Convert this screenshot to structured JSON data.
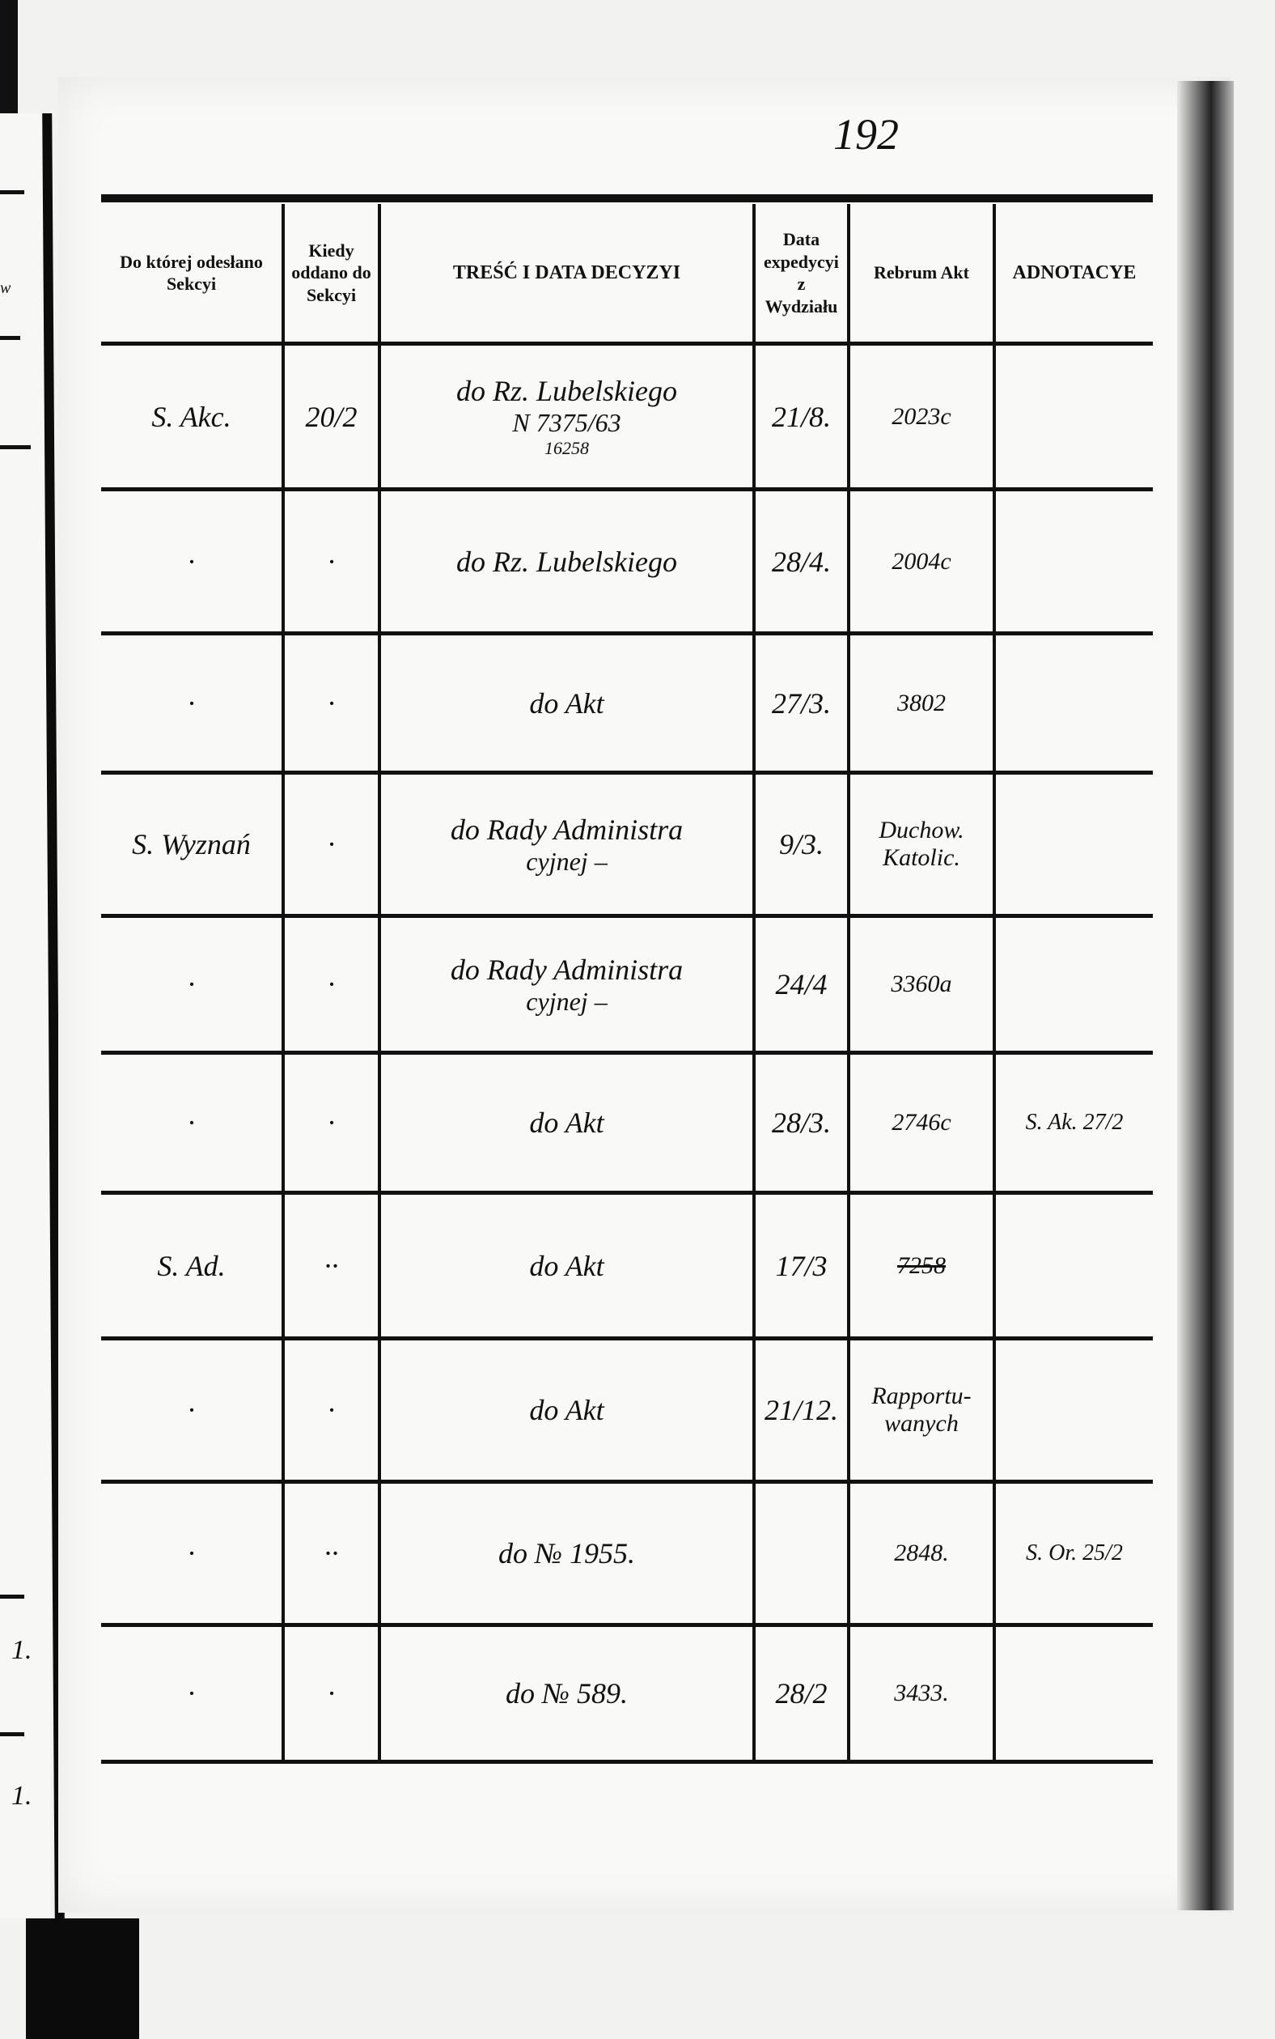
{
  "page_number": "192",
  "left_page_fragments": {
    "header_letter": "w",
    "row_marks": [
      "1.",
      "1."
    ]
  },
  "headers": {
    "col1": "Do której odesłano Sekcyi",
    "col2": "Kiedy oddano do Sekcyi",
    "col3": "TREŚĆ I DATA DECYZYI",
    "col4": "Data expedycyi z Wydziału",
    "col5": "Rebrum Akt",
    "col6": "ADNOTACYE"
  },
  "rows": [
    {
      "sekcja": "S. Akc.",
      "kiedy": "20/2",
      "tresc": "do Rz. Lubelskiego",
      "tresc2": "N 7375/63",
      "tresc3": "16258",
      "data_exp": "21/8.",
      "rebrum": "2023c",
      "adnotacye": ""
    },
    {
      "sekcja": "·",
      "kiedy": "·",
      "tresc": "do Rz. Lubelskiego",
      "tresc2": "",
      "tresc3": "",
      "data_exp": "28/4.",
      "rebrum": "2004c",
      "adnotacye": ""
    },
    {
      "sekcja": "·",
      "kiedy": "·",
      "tresc": "do Akt",
      "tresc2": "",
      "tresc3": "",
      "data_exp": "27/3.",
      "rebrum": "3802",
      "adnotacye": ""
    },
    {
      "sekcja": "S. Wyznań",
      "kiedy": "·",
      "tresc": "do Rady Administra",
      "tresc2": "cyjnej –",
      "tresc3": "",
      "data_exp": "9/3.",
      "rebrum": "Duchow. Katolic.",
      "adnotacye": ""
    },
    {
      "sekcja": "·",
      "kiedy": "·",
      "tresc": "do Rady Administra",
      "tresc2": "cyjnej –",
      "tresc3": "",
      "data_exp": "24/4",
      "rebrum": "3360a",
      "adnotacye": ""
    },
    {
      "sekcja": "·",
      "kiedy": "·",
      "tresc": "do Akt",
      "tresc2": "",
      "tresc3": "",
      "data_exp": "28/3.",
      "rebrum": "2746c",
      "adnotacye": "S. Ak. 27/2"
    },
    {
      "sekcja": "S. Ad.",
      "kiedy": "··",
      "tresc": "do Akt",
      "tresc2": "",
      "tresc3": "",
      "data_exp": "17/3",
      "rebrum": "7258",
      "adnotacye": ""
    },
    {
      "sekcja": "·",
      "kiedy": "·",
      "tresc": "do Akt",
      "tresc2": "",
      "tresc3": "",
      "data_exp": "21/12.",
      "rebrum": "Rapportu-wanych",
      "adnotacye": ""
    },
    {
      "sekcja": "·",
      "kiedy": "··",
      "tresc": "do № 1955.",
      "tresc2": "",
      "tresc3": "",
      "data_exp": "",
      "rebrum": "2848.",
      "adnotacye": "S. Or. 25/2"
    },
    {
      "sekcja": "·",
      "kiedy": "·",
      "tresc": "do № 589.",
      "tresc2": "",
      "tresc3": "",
      "data_exp": "28/2",
      "rebrum": "3433.",
      "adnotacye": ""
    }
  ]
}
